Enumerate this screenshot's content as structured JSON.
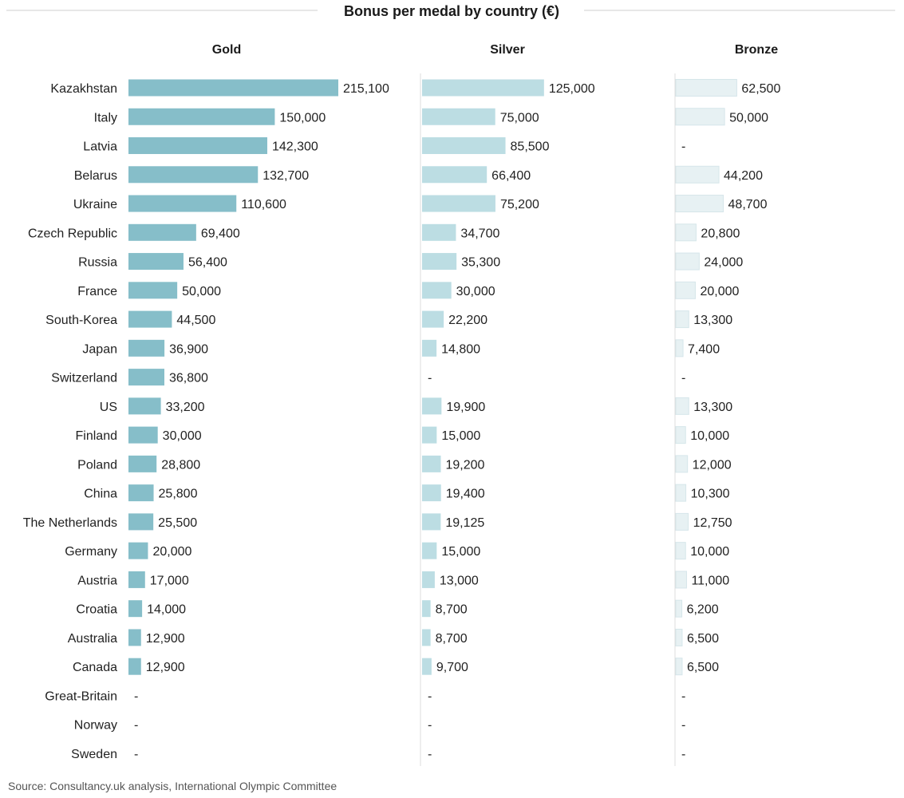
{
  "chart_data": {
    "type": "bar",
    "title": "Bonus per medal by country (€)",
    "source": "Source: Consultancy.uk analysis, International Olympic Committee",
    "missing_label": "-",
    "categories": [
      "Kazakhstan",
      "Italy",
      "Latvia",
      "Belarus",
      "Ukraine",
      "Czech Republic",
      "Russia",
      "France",
      "South-Korea",
      "Japan",
      "Switzerland",
      "US",
      "Finland",
      "Poland",
      "China",
      "The Netherlands",
      "Germany",
      "Austria",
      "Croatia",
      "Australia",
      "Canada",
      "Great-Britain",
      "Norway",
      "Sweden"
    ],
    "series": [
      {
        "name": "Gold",
        "color": "#86bec9",
        "values": [
          215100,
          150000,
          142300,
          132700,
          110600,
          69400,
          56400,
          50000,
          44500,
          36900,
          36800,
          33200,
          30000,
          28800,
          25800,
          25500,
          20000,
          17000,
          14000,
          12900,
          12900,
          null,
          null,
          null
        ],
        "labels": [
          "215,100",
          "150,000",
          "142,300",
          "132,700",
          "110,600",
          "69,400",
          "56,400",
          "50,000",
          "44,500",
          "36,900",
          "36,800",
          "33,200",
          "30,000",
          "28,800",
          "25,800",
          "25,500",
          "20,000",
          "17,000",
          "14,000",
          "12,900",
          "12,900",
          "-",
          "-",
          "-"
        ]
      },
      {
        "name": "Silver",
        "color": "#bcdde3",
        "values": [
          125000,
          75000,
          85500,
          66400,
          75200,
          34700,
          35300,
          30000,
          22200,
          14800,
          null,
          19900,
          15000,
          19200,
          19400,
          19125,
          15000,
          13000,
          8700,
          8700,
          9700,
          null,
          null,
          null
        ],
        "labels": [
          "125,000",
          "75,000",
          "85,500",
          "66,400",
          "75,200",
          "34,700",
          "35,300",
          "30,000",
          "22,200",
          "14,800",
          "-",
          "19,900",
          "15,000",
          "19,200",
          "19,400",
          "19,125",
          "15,000",
          "13,000",
          "8,700",
          "8,700",
          "9,700",
          "-",
          "-",
          "-"
        ]
      },
      {
        "name": "Bronze",
        "color": "#e7f1f3",
        "values": [
          62500,
          50000,
          null,
          44200,
          48700,
          20800,
          24000,
          20000,
          13300,
          7400,
          null,
          13300,
          10000,
          12000,
          10300,
          12750,
          10000,
          11000,
          6200,
          6500,
          6500,
          null,
          null,
          null
        ],
        "labels": [
          "62,500",
          "50,000",
          "-",
          "44,200",
          "48,700",
          "20,800",
          "24,000",
          "20,000",
          "13,300",
          "7,400",
          "-",
          "13,300",
          "10,000",
          "12,000",
          "10,300",
          "12,750",
          "10,000",
          "11,000",
          "6,200",
          "6,500",
          "6,500",
          "-",
          "-",
          "-"
        ]
      }
    ]
  }
}
